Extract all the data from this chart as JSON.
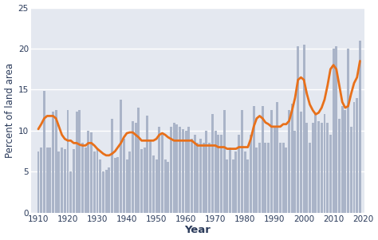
{
  "years": [
    1910,
    1911,
    1912,
    1913,
    1914,
    1915,
    1916,
    1917,
    1918,
    1919,
    1920,
    1921,
    1922,
    1923,
    1924,
    1925,
    1926,
    1927,
    1928,
    1929,
    1930,
    1931,
    1932,
    1933,
    1934,
    1935,
    1936,
    1937,
    1938,
    1939,
    1940,
    1941,
    1942,
    1943,
    1944,
    1945,
    1946,
    1947,
    1948,
    1949,
    1950,
    1951,
    1952,
    1953,
    1954,
    1955,
    1956,
    1957,
    1958,
    1959,
    1960,
    1961,
    1962,
    1963,
    1964,
    1965,
    1966,
    1967,
    1968,
    1969,
    1970,
    1971,
    1972,
    1973,
    1974,
    1975,
    1976,
    1977,
    1978,
    1979,
    1980,
    1981,
    1982,
    1983,
    1984,
    1985,
    1986,
    1987,
    1988,
    1989,
    1990,
    1991,
    1992,
    1993,
    1994,
    1995,
    1996,
    1997,
    1998,
    1999,
    2000,
    2001,
    2002,
    2003,
    2004,
    2005,
    2006,
    2007,
    2008,
    2009,
    2010,
    2011,
    2012,
    2013,
    2014,
    2015,
    2016,
    2017,
    2018,
    2019
  ],
  "bar_values": [
    7.5,
    8.0,
    14.9,
    8.0,
    8.0,
    12.3,
    12.5,
    7.5,
    8.0,
    7.8,
    12.5,
    5.0,
    7.8,
    12.3,
    12.5,
    8.5,
    8.0,
    10.0,
    9.8,
    7.5,
    7.8,
    6.5,
    5.0,
    5.2,
    5.5,
    11.5,
    6.7,
    6.8,
    13.8,
    9.0,
    6.5,
    7.5,
    11.2,
    11.0,
    12.8,
    7.8,
    8.0,
    11.8,
    8.8,
    7.0,
    6.5,
    10.5,
    9.5,
    6.5,
    6.2,
    10.5,
    11.0,
    10.8,
    10.5,
    10.2,
    10.0,
    10.5,
    9.0,
    9.5,
    8.5,
    9.0,
    8.5,
    10.0,
    8.5,
    12.0,
    10.0,
    9.5,
    9.5,
    12.5,
    6.5,
    8.0,
    6.5,
    7.5,
    9.5,
    12.5,
    7.5,
    6.5,
    9.5,
    13.0,
    8.0,
    8.5,
    13.0,
    8.5,
    8.5,
    12.5,
    10.5,
    13.5,
    8.5,
    8.5,
    8.0,
    12.5,
    13.3,
    10.0,
    20.3,
    12.3,
    20.5,
    11.0,
    8.5,
    11.0,
    12.0,
    11.2,
    11.0,
    12.0,
    11.0,
    9.5,
    20.0,
    20.3,
    11.5,
    13.0,
    12.5,
    20.0,
    10.5,
    13.5,
    14.0,
    21.0
  ],
  "smooth_values": [
    10.2,
    10.8,
    11.5,
    11.8,
    11.8,
    11.8,
    11.5,
    10.5,
    9.5,
    9.0,
    8.8,
    8.8,
    8.5,
    8.5,
    8.3,
    8.2,
    8.2,
    8.5,
    8.5,
    8.2,
    7.8,
    7.5,
    7.2,
    7.0,
    7.0,
    7.2,
    7.5,
    8.0,
    8.5,
    9.2,
    9.7,
    9.8,
    9.8,
    9.5,
    9.2,
    8.8,
    8.8,
    8.8,
    8.8,
    8.8,
    9.0,
    9.5,
    9.7,
    9.5,
    9.2,
    9.0,
    8.8,
    8.8,
    8.8,
    8.8,
    8.8,
    8.8,
    8.8,
    8.5,
    8.2,
    8.2,
    8.2,
    8.2,
    8.2,
    8.2,
    8.2,
    8.0,
    8.0,
    8.0,
    7.8,
    7.8,
    7.8,
    7.8,
    8.0,
    8.0,
    8.0,
    8.0,
    9.0,
    10.5,
    11.5,
    11.8,
    11.5,
    11.0,
    10.8,
    10.5,
    10.5,
    10.5,
    10.5,
    10.8,
    10.8,
    11.2,
    12.5,
    14.0,
    16.2,
    16.5,
    16.2,
    14.5,
    13.2,
    12.5,
    12.0,
    12.2,
    12.8,
    13.8,
    15.5,
    17.5,
    18.0,
    17.5,
    15.5,
    13.5,
    12.8,
    13.0,
    14.5,
    15.8,
    16.5,
    18.5
  ],
  "bar_color": "#aab4c8",
  "line_color": "#e8701a",
  "fig_bg_color": "#ffffff",
  "plot_bg_color": "#e4e8f0",
  "ylabel": "Percent of land area",
  "xlabel": "Year",
  "ylim": [
    0,
    25
  ],
  "yticks": [
    0,
    5,
    10,
    15,
    20,
    25
  ],
  "xticks": [
    1910,
    1920,
    1930,
    1940,
    1950,
    1960,
    1970,
    1980,
    1990,
    2000,
    2010,
    2020
  ],
  "xlim": [
    1907.5,
    2020.5
  ],
  "line_width": 2.0,
  "bar_width": 0.8,
  "ylabel_fontsize": 8.5,
  "xlabel_fontsize": 9.5,
  "tick_fontsize": 7.5,
  "grid_color": "#ffffff",
  "grid_lw": 1.0,
  "tick_color": "#2a3a5a",
  "label_color": "#2a3a5a"
}
